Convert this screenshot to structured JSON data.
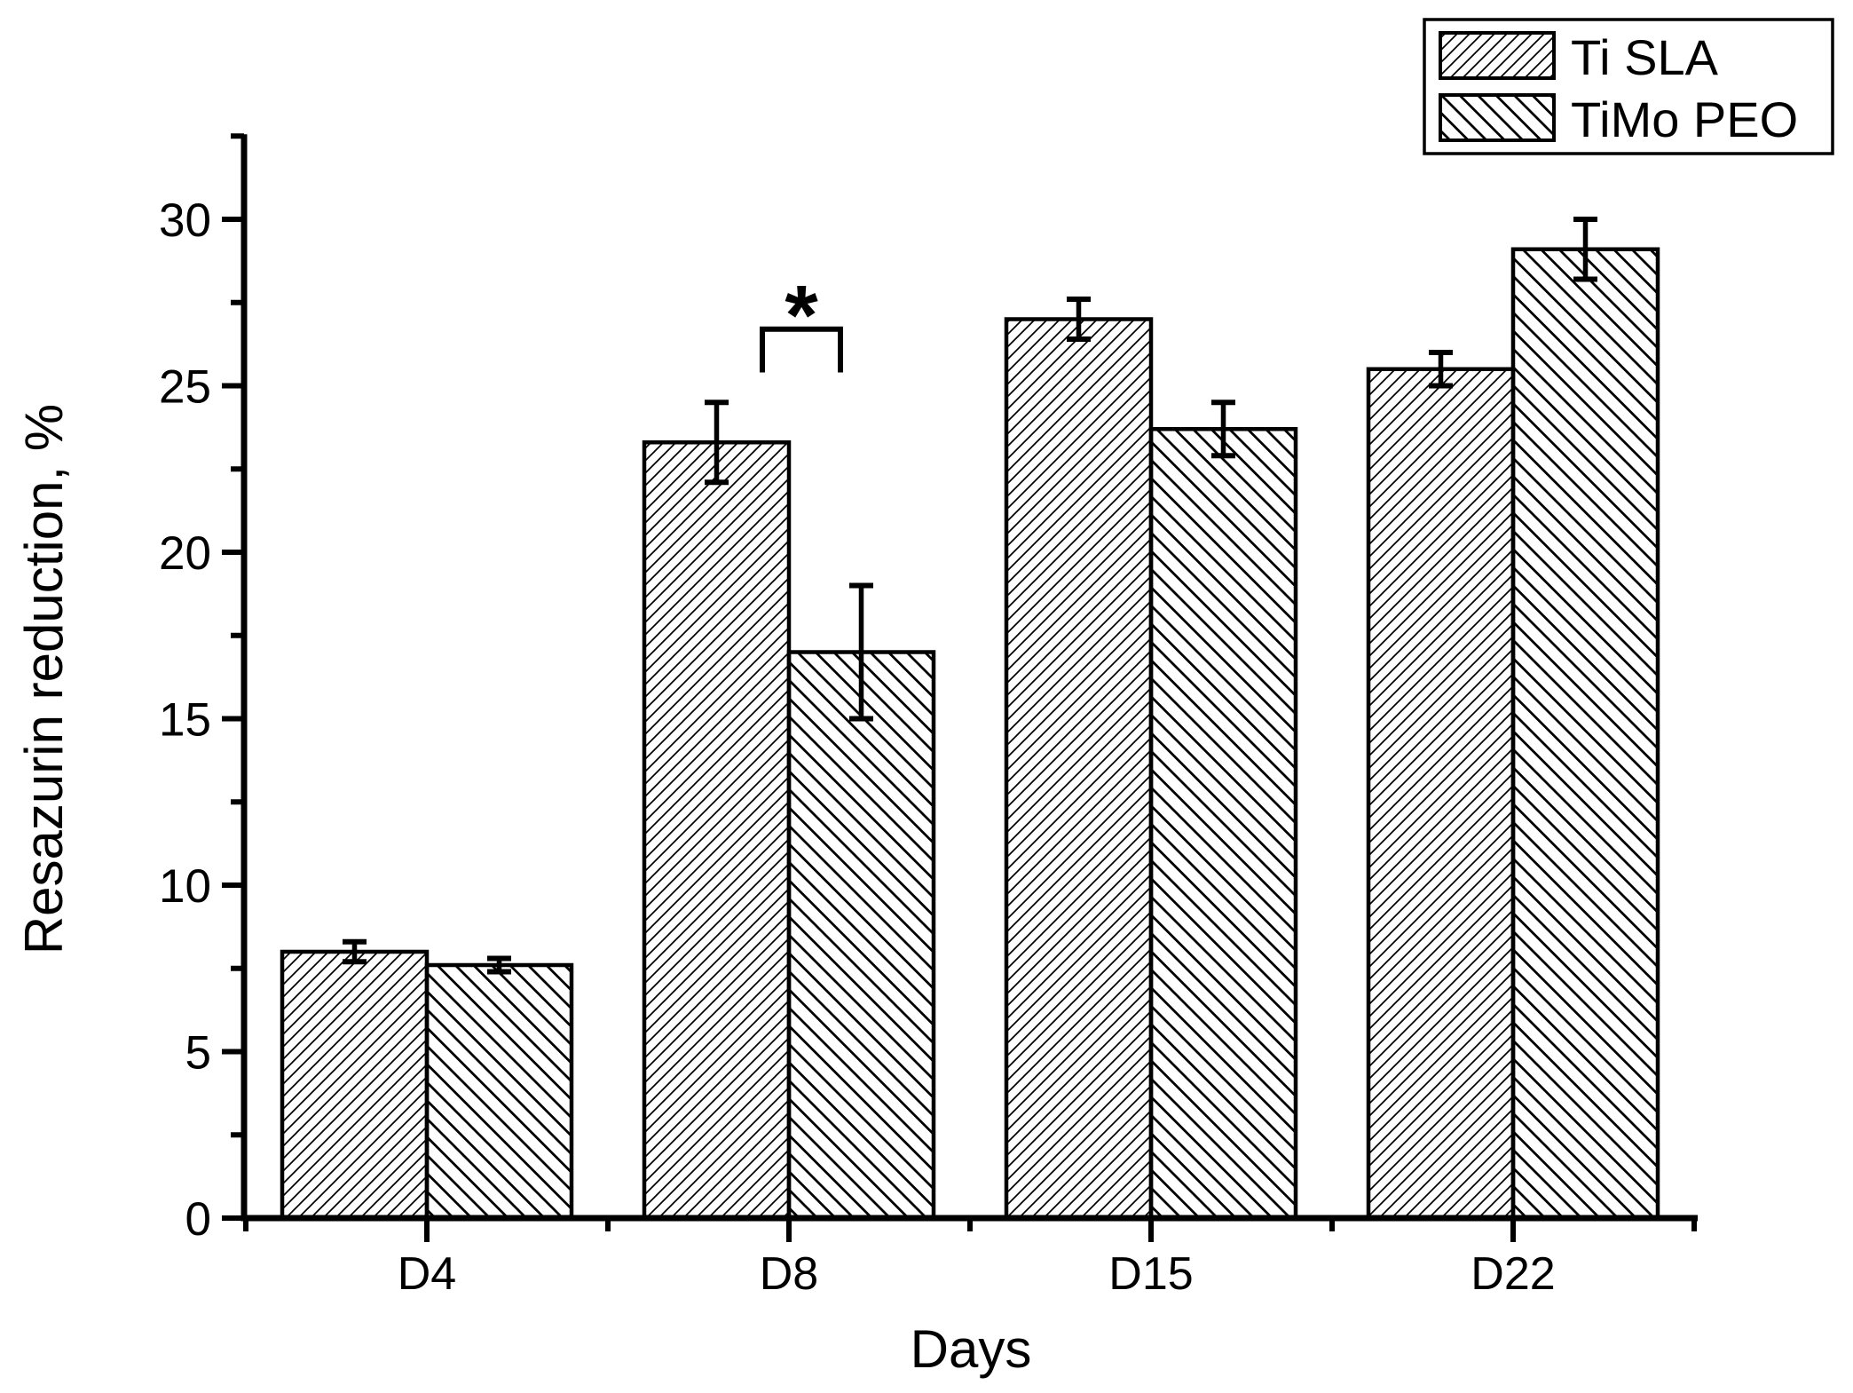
{
  "colors": {
    "foreground": "#000000",
    "background": "#ffffff"
  },
  "chart_data": {
    "type": "bar",
    "title": "",
    "xlabel": "Days",
    "ylabel": "Resazurin reduction, %",
    "categories": [
      "D4",
      "D8",
      "D15",
      "D22"
    ],
    "series": [
      {
        "name": "Ti SLA",
        "hatch": "forward-diagonal",
        "values": [
          8.0,
          23.3,
          27.0,
          25.5
        ],
        "errors": [
          0.3,
          1.2,
          0.6,
          0.5
        ]
      },
      {
        "name": "TiMo PEO",
        "hatch": "backward-diagonal",
        "values": [
          7.6,
          17.0,
          23.7,
          29.1
        ],
        "errors": [
          0.2,
          2.0,
          0.8,
          0.9
        ]
      }
    ],
    "ylim": [
      0,
      32.5
    ],
    "yticks_major": [
      0,
      5,
      10,
      15,
      20,
      25,
      30
    ],
    "ytick_minor_step": 2.5,
    "grid": false,
    "legend_position": "top-right",
    "error_bars": "both-sides-capped",
    "significance": {
      "label": "*",
      "category": "D8",
      "between": [
        "Ti SLA",
        "TiMo PEO"
      ],
      "bracket_top_value": 26.7,
      "bracket_leg_bottom_value": 25.4
    }
  }
}
